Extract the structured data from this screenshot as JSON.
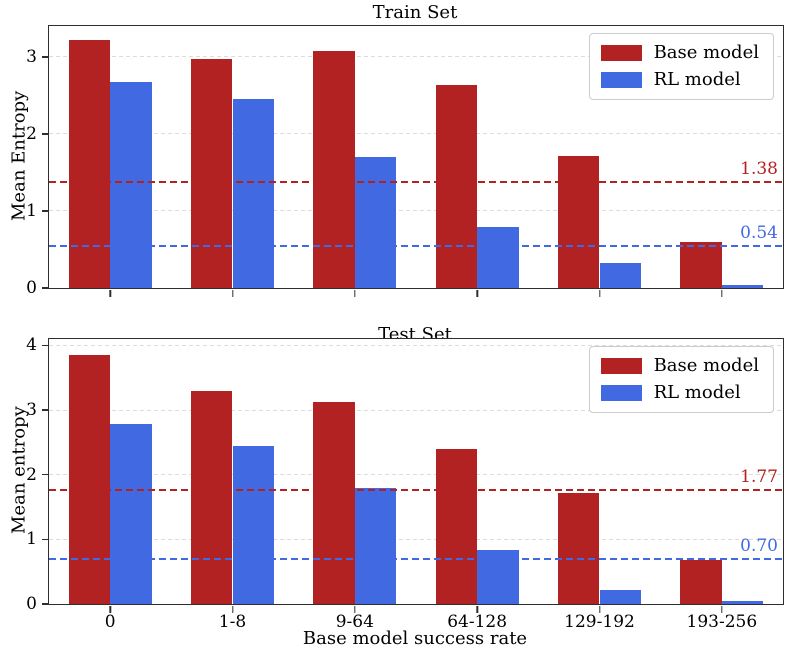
{
  "figure": {
    "background": "#ffffff"
  },
  "colors": {
    "base_model": "#b22222",
    "rl_model": "#4169e1",
    "grid": "#dcdcdc",
    "spine": "#2e2e2e",
    "legend_border": "#cccccc"
  },
  "legend": {
    "entries": [
      "Base model",
      "RL model"
    ]
  },
  "chart_data": [
    {
      "type": "bar",
      "title": "Train Set",
      "ylabel": "Mean Entropy",
      "xlabel": "",
      "categories": [
        "0",
        "1-8",
        "9-64",
        "64-128",
        "129-192",
        "193-256"
      ],
      "series": [
        {
          "name": "Base model",
          "color": "#b22222",
          "values": [
            3.22,
            2.97,
            3.08,
            2.64,
            1.71,
            0.6
          ]
        },
        {
          "name": "RL model",
          "color": "#4169e1",
          "values": [
            2.67,
            2.45,
            1.7,
            0.79,
            0.33,
            0.04
          ]
        }
      ],
      "mean_lines": [
        {
          "series": "Base model",
          "value": 1.38,
          "label": "1.38",
          "color": "#b22222"
        },
        {
          "series": "RL model",
          "value": 0.54,
          "label": "0.54",
          "color": "#4169e1"
        }
      ],
      "yticks": [
        0,
        1,
        2,
        3
      ],
      "ylim": [
        0,
        3.4
      ],
      "grid": true,
      "legend_position": "upper right",
      "show_xticklabels": false
    },
    {
      "type": "bar",
      "title": "Test Set",
      "ylabel": "Mean entropy",
      "xlabel": "Base model success rate",
      "categories": [
        "0",
        "1-8",
        "9-64",
        "64-128",
        "129-192",
        "193-256"
      ],
      "series": [
        {
          "name": "Base model",
          "color": "#b22222",
          "values": [
            3.85,
            3.29,
            3.12,
            2.4,
            1.71,
            0.68
          ]
        },
        {
          "name": "RL model",
          "color": "#4169e1",
          "values": [
            2.78,
            2.45,
            1.79,
            0.83,
            0.21,
            0.04
          ]
        }
      ],
      "mean_lines": [
        {
          "series": "Base model",
          "value": 1.77,
          "label": "1.77",
          "color": "#b22222"
        },
        {
          "series": "RL model",
          "value": 0.7,
          "label": "0.70",
          "color": "#4169e1"
        }
      ],
      "yticks": [
        0,
        1,
        2,
        3,
        4
      ],
      "ylim": [
        0,
        4.1
      ],
      "grid": true,
      "legend_position": "upper right",
      "show_xticklabels": true
    }
  ]
}
